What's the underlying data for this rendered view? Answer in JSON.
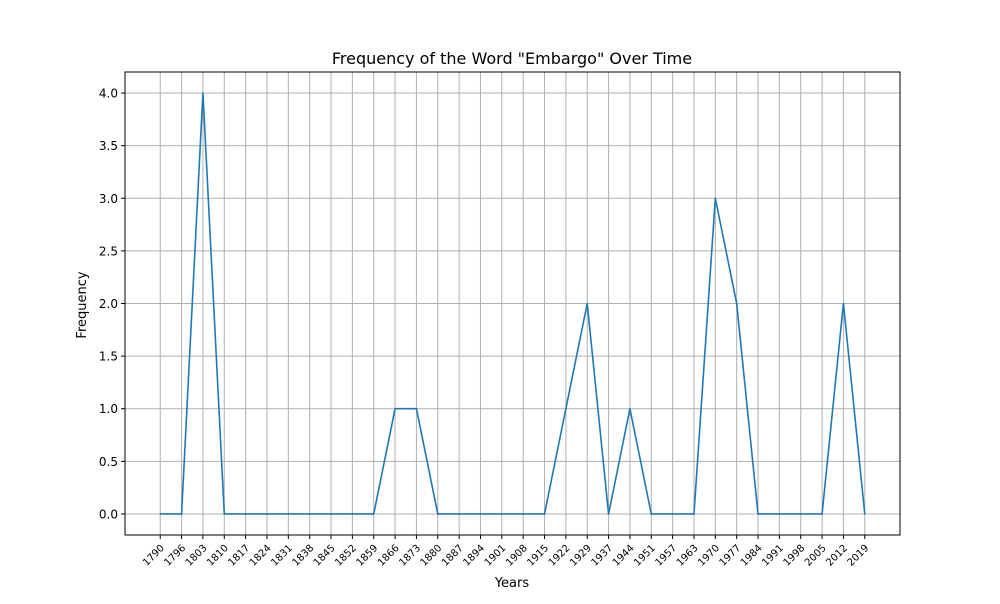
{
  "chart_data": {
    "type": "line",
    "title": "Frequency of the Word \"Embargo\" Over Time",
    "xlabel": "Years",
    "ylabel": "Frequency",
    "x": [
      "1790",
      "1796",
      "1803",
      "1810",
      "1817",
      "1824",
      "1831",
      "1838",
      "1845",
      "1852",
      "1859",
      "1866",
      "1873",
      "1880",
      "1887",
      "1894",
      "1901",
      "1908",
      "1915",
      "1922",
      "1929",
      "1937",
      "1944",
      "1951",
      "1957",
      "1963",
      "1970",
      "1977",
      "1984",
      "1991",
      "1998",
      "2005",
      "2012",
      "2019"
    ],
    "series": [
      {
        "values": [
          0,
          0,
          4,
          0,
          0,
          0,
          0,
          0,
          0,
          0,
          0,
          1,
          1,
          0,
          0,
          0,
          0,
          0,
          0,
          1,
          2,
          0,
          1,
          0,
          0,
          0,
          3,
          2,
          0,
          0,
          0,
          0,
          2,
          0
        ]
      }
    ],
    "ylim": [
      -0.2,
      4.2
    ],
    "yticks": [
      0.0,
      0.5,
      1.0,
      1.5,
      2.0,
      2.5,
      3.0,
      3.5,
      4.0
    ],
    "ytick_labels": [
      "0.0",
      "0.5",
      "1.0",
      "1.5",
      "2.0",
      "2.5",
      "3.0",
      "3.5",
      "4.0"
    ],
    "grid": true,
    "line_color": "#1f77b4"
  }
}
